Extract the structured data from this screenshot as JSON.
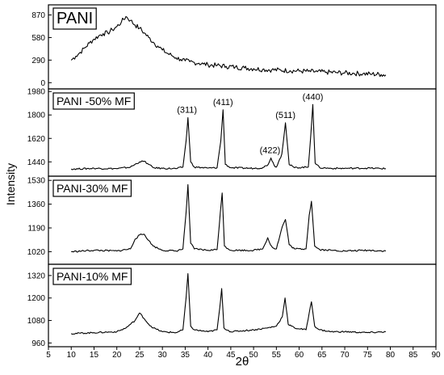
{
  "chart_data": {
    "type": "line",
    "figure": "stacked XRD patterns",
    "xlabel": "2θ",
    "ylabel": "Intensity",
    "xlim": [
      5,
      90
    ],
    "xticks": [
      5,
      10,
      15,
      20,
      25,
      30,
      35,
      40,
      45,
      50,
      55,
      60,
      65,
      70,
      75,
      80,
      85,
      90
    ],
    "grid": false,
    "panels": [
      {
        "label": "PANI",
        "ylim": [
          -80,
          1000
        ],
        "yticks": [
          0,
          290,
          580,
          870
        ],
        "series": [
          {
            "x": [
              10,
              11,
              12,
              13,
              14,
              15,
              16,
              17,
              18,
              19,
              20,
              21,
              22,
              23,
              24,
              25,
              26,
              27,
              28,
              29,
              30,
              31,
              32,
              33,
              34,
              35,
              36,
              37,
              38,
              39,
              40,
              42,
              44,
              46,
              48,
              50,
              52,
              54,
              56,
              58,
              60,
              62,
              64,
              66,
              68,
              70,
              72,
              74,
              76,
              78,
              79
            ],
            "y": [
              290,
              340,
              390,
              450,
              510,
              560,
              600,
              630,
              640,
              680,
              720,
              780,
              850,
              800,
              740,
              700,
              640,
              580,
              520,
              470,
              420,
              380,
              350,
              320,
              300,
              280,
              270,
              260,
              250,
              240,
              230,
              220,
              210,
              200,
              190,
              180,
              170,
              165,
              160,
              155,
              150,
              145,
              140,
              135,
              130,
              125,
              120,
              115,
              110,
              105,
              100
            ]
          }
        ],
        "peak_labels": []
      },
      {
        "label": "PANI -50% MF",
        "ylim": [
          1330,
          2000
        ],
        "yticks": [
          1440,
          1620,
          1800,
          1980
        ],
        "series": [
          {
            "x": [
              10,
              15,
              20,
              23,
              25,
              26,
              27,
              28,
              30,
              33,
              34.5,
              35.2,
              35.6,
              36.2,
              37,
              40,
              42,
              42.8,
              43.3,
              43.8,
              45,
              50,
              52,
              53.2,
              53.8,
              54.5,
              55,
              56.2,
              57,
              57.8,
              59,
              62,
              62.5,
              63.0,
              63.5,
              64.5,
              67,
              70,
              75,
              79
            ],
            "y": [
              1385,
              1390,
              1388,
              1400,
              1440,
              1445,
              1420,
              1395,
              1390,
              1388,
              1400,
              1600,
              1780,
              1440,
              1400,
              1392,
              1395,
              1600,
              1840,
              1420,
              1395,
              1390,
              1395,
              1420,
              1470,
              1415,
              1400,
              1500,
              1740,
              1420,
              1395,
              1400,
              1620,
              1880,
              1430,
              1395,
              1390,
              1390,
              1392,
              1388
            ]
          }
        ],
        "peak_labels": [
          {
            "x": 35.4,
            "text": "(311)"
          },
          {
            "x": 43.3,
            "text": "(411)"
          },
          {
            "x": 53.6,
            "text": "(422)"
          },
          {
            "x": 57.0,
            "text": "(511)"
          },
          {
            "x": 63.0,
            "text": "(440)"
          }
        ]
      },
      {
        "label": "PANI-30% MF",
        "ylim": [
          930,
          1560
        ],
        "yticks": [
          1020,
          1190,
          1360,
          1530
        ],
        "series": [
          {
            "x": [
              10,
              15,
              20,
              23,
              24,
              25,
              26,
              27,
              28,
              30,
              33,
              34.5,
              35.2,
              35.6,
              36.2,
              37,
              40,
              42,
              42.7,
              43.1,
              43.6,
              45,
              50,
              52,
              53.1,
              53.7,
              54.4,
              55,
              56.3,
              57,
              57.8,
              59,
              61.5,
              62.2,
              62.7,
              63.4,
              64.5,
              67,
              70,
              75,
              79
            ],
            "y": [
              1020,
              1030,
              1025,
              1040,
              1110,
              1140,
              1145,
              1100,
              1060,
              1030,
              1025,
              1040,
              1300,
              1500,
              1080,
              1040,
              1030,
              1035,
              1300,
              1440,
              1060,
              1030,
              1030,
              1040,
              1120,
              1070,
              1045,
              1040,
              1200,
              1250,
              1070,
              1040,
              1040,
              1280,
              1380,
              1060,
              1035,
              1030,
              1025,
              1030,
              1025
            ]
          }
        ],
        "peak_labels": []
      },
      {
        "label": "PANI-10% MF",
        "ylim": [
          940,
          1380
        ],
        "yticks": [
          960,
          1080,
          1200,
          1320
        ],
        "series": [
          {
            "x": [
              10,
              15,
              20,
              22,
              24,
              25,
              26,
              27,
              28,
              30,
              33,
              34.5,
              35.2,
              35.6,
              36.2,
              37,
              40,
              42,
              42.6,
              43.0,
              43.5,
              45,
              50,
              53,
              55,
              56.3,
              56.9,
              57.6,
              59,
              61.5,
              62.2,
              62.7,
              63.4,
              64.5,
              67,
              70,
              75,
              79
            ],
            "y": [
              1010,
              1015,
              1020,
              1040,
              1080,
              1120,
              1090,
              1060,
              1040,
              1020,
              1015,
              1030,
              1200,
              1330,
              1050,
              1030,
              1020,
              1030,
              1150,
              1250,
              1040,
              1020,
              1030,
              1040,
              1050,
              1100,
              1200,
              1060,
              1040,
              1030,
              1120,
              1180,
              1050,
              1030,
              1020,
              1020,
              1015,
              1020
            ]
          }
        ],
        "peak_labels": []
      }
    ]
  }
}
